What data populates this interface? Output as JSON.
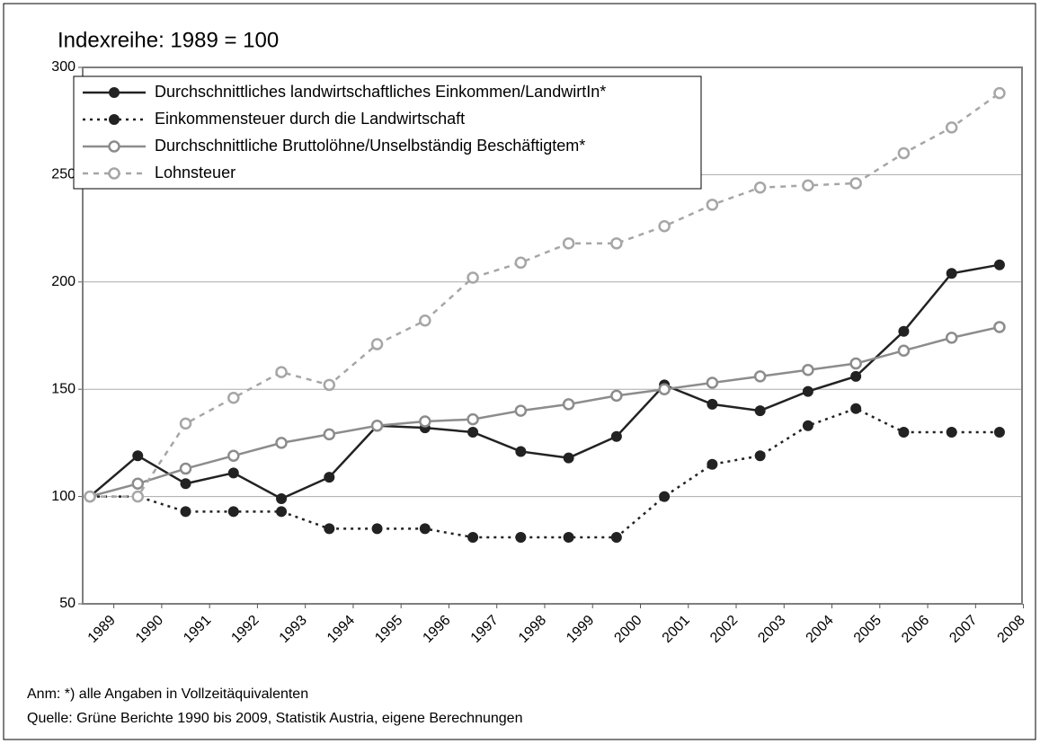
{
  "chart_data": {
    "type": "line",
    "title": "Indexreihe: 1989 = 100",
    "categories": [
      "1989",
      "1990",
      "1991",
      "1992",
      "1993",
      "1994",
      "1995",
      "1996",
      "1997",
      "1998",
      "1999",
      "2000",
      "2001",
      "2002",
      "2003",
      "2004",
      "2005",
      "2006",
      "2007",
      "2008"
    ],
    "series": [
      {
        "name": "Durchschnittliches landwirtschaftliches Einkommen/LandwirtIn*",
        "color": "#222222",
        "line_style": "solid",
        "marker": "filled",
        "values": [
          100,
          119,
          106,
          111,
          99,
          109,
          133,
          132,
          130,
          121,
          118,
          128,
          152,
          143,
          140,
          149,
          156,
          177,
          204,
          208
        ]
      },
      {
        "name": "Einkommensteuer durch die Landwirtschaft",
        "color": "#222222",
        "line_style": "dotted",
        "marker": "filled",
        "values": [
          100,
          100,
          93,
          93,
          93,
          85,
          85,
          85,
          81,
          81,
          81,
          81,
          100,
          115,
          119,
          133,
          141,
          130,
          130,
          130
        ]
      },
      {
        "name": "Durchschnittliche Bruttolöhne/Unselbständig Beschäftigtem*",
        "color": "#8c8c8c",
        "line_style": "solid",
        "marker": "open",
        "values": [
          100,
          106,
          113,
          119,
          125,
          129,
          133,
          135,
          136,
          140,
          143,
          147,
          150,
          153,
          156,
          159,
          162,
          168,
          174,
          179
        ]
      },
      {
        "name": "Lohnsteuer",
        "color": "#a6a6a6",
        "line_style": "dashed",
        "marker": "open",
        "values": [
          100,
          100,
          134,
          146,
          158,
          152,
          171,
          182,
          202,
          209,
          218,
          218,
          226,
          236,
          244,
          245,
          246,
          260,
          272,
          288
        ]
      }
    ],
    "ylim": [
      50,
      300
    ],
    "yticks": [
      50,
      100,
      150,
      200,
      250,
      300
    ],
    "grid": true,
    "legend": "upper left",
    "notes": [
      "Anm: *) alle Angaben in Vollzeitäquivalenten",
      "Quelle: Grüne Berichte 1990 bis 2009, Statistik Austria, eigene Berechnungen"
    ]
  }
}
